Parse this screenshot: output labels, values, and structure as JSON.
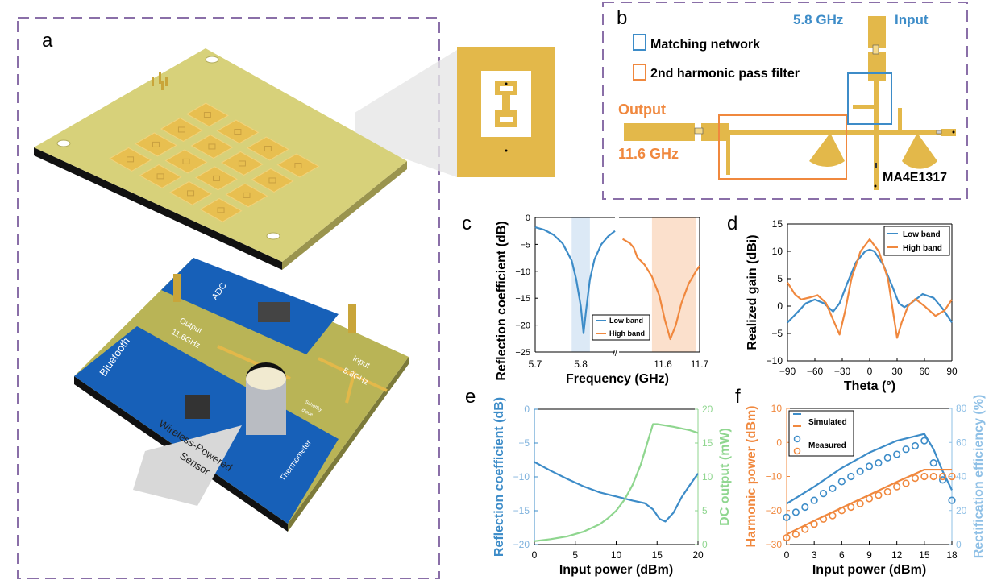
{
  "colors": {
    "blue": "#3d8cc8",
    "orange": "#f0883e",
    "green": "#8fd68f",
    "gold": "#e3b84a",
    "board": "#d7d17a",
    "pcb_blue": "#1760b8",
    "frame": "#8a6fa8",
    "blue_band": "#dce9f6",
    "orange_band": "#fbe0cc"
  },
  "panel_a": {
    "label": "a",
    "board_labels": {
      "adc": "ADC",
      "output": "Output",
      "output_freq": "11.6GHz",
      "input": "Input",
      "input_freq": "5.8GHz",
      "bluetooth": "Bluetooth",
      "sensor_line1": "Wireless-Powered",
      "sensor_line2": "Sensor",
      "thermometer": "Thermometer",
      "schottky_line1": "Schottky",
      "schottky_line2": "diode"
    }
  },
  "panel_b": {
    "label": "b",
    "legend": [
      {
        "label": "Matching network",
        "color": "#3d8cc8"
      },
      {
        "label": "2nd harmonic pass filter",
        "color": "#f0883e"
      }
    ],
    "input_freq": "5.8 GHz",
    "input_label": "Input",
    "output_label": "Output",
    "output_freq": "11.6 GHz",
    "diode": "MA4E1317"
  },
  "chart_data": [
    {
      "panel": "c",
      "type": "line",
      "xlabel": "Frequency (GHz)",
      "ylabel": "Reflection coefficient (dB)",
      "ylim": [
        -25,
        0
      ],
      "broken_x_axis": true,
      "xlim_segments": [
        [
          5.7,
          5.875
        ],
        [
          11.48,
          11.7
        ]
      ],
      "xticks": [
        5.7,
        5.8,
        11.6,
        11.7
      ],
      "yticks": [
        0,
        -5,
        -10,
        -15,
        -20,
        -25
      ],
      "legend_position": "bottom-center",
      "shaded_bands": [
        {
          "x": [
            5.78,
            5.82
          ],
          "color": "#dce9f6"
        },
        {
          "x": [
            11.57,
            11.69
          ],
          "color": "#fbe0cc"
        }
      ],
      "series": [
        {
          "name": "Low band",
          "color": "#3d8cc8",
          "x": [
            5.7,
            5.72,
            5.74,
            5.76,
            5.78,
            5.79,
            5.8,
            5.806,
            5.812,
            5.82,
            5.83,
            5.845,
            5.86,
            5.875
          ],
          "y": [
            -1.8,
            -2.3,
            -3.2,
            -4.8,
            -8,
            -11.5,
            -16.5,
            -21.5,
            -17,
            -11.5,
            -7.8,
            -5,
            -3.5,
            -2.5
          ]
        },
        {
          "name": "High band",
          "color": "#f0883e",
          "x": [
            11.49,
            11.51,
            11.52,
            11.53,
            11.55,
            11.57,
            11.59,
            11.605,
            11.62,
            11.635,
            11.65,
            11.67,
            11.69,
            11.7
          ],
          "y": [
            -4,
            -4.8,
            -5.6,
            -7.4,
            -8.8,
            -11,
            -14.5,
            -19,
            -22.6,
            -20,
            -16,
            -12.3,
            -10,
            -9
          ]
        }
      ]
    },
    {
      "panel": "d",
      "type": "line",
      "xlabel": "Theta (°)",
      "ylabel": "Realized gain (dBi)",
      "xlim": [
        -90,
        90
      ],
      "ylim": [
        -10,
        15
      ],
      "xticks": [
        -90,
        -60,
        -30,
        0,
        30,
        60,
        90
      ],
      "yticks": [
        15,
        10,
        5,
        0,
        -5,
        -10
      ],
      "legend_position": "top-right",
      "series": [
        {
          "name": "Low band",
          "color": "#3d8cc8",
          "x": [
            -90,
            -80,
            -70,
            -60,
            -50,
            -40,
            -33,
            -25,
            -15,
            -5,
            0,
            5,
            15,
            25,
            32,
            38,
            45,
            58,
            70,
            80,
            90
          ],
          "y": [
            -3,
            -1.3,
            0.5,
            1.2,
            0.5,
            -1,
            0.5,
            4,
            8,
            10,
            10.3,
            10,
            7.5,
            3.5,
            0.5,
            -0.2,
            0.5,
            2.2,
            1.5,
            -0.5,
            -3
          ]
        },
        {
          "name": "High band",
          "color": "#f0883e",
          "x": [
            -90,
            -82,
            -75,
            -65,
            -57,
            -48,
            -40,
            -33,
            -27,
            -20,
            -10,
            0,
            10,
            20,
            26,
            30,
            35,
            42,
            50,
            60,
            72,
            82,
            90
          ],
          "y": [
            4.3,
            2.2,
            1.2,
            1.6,
            2,
            0.6,
            -2.5,
            -5.2,
            -1,
            5,
            10,
            12.2,
            10,
            5,
            -1.5,
            -5.8,
            -3,
            0,
            1.3,
            0,
            -1.8,
            -0.8,
            1.2
          ]
        }
      ]
    },
    {
      "panel": "e",
      "type": "line",
      "xlabel": "Input power (dBm)",
      "ylabel": "Reflection coefficient (dB)",
      "y2label": "DC output (mW)",
      "xlim": [
        0,
        20
      ],
      "ylim": [
        -20,
        0
      ],
      "y2lim": [
        0,
        20
      ],
      "xticks": [
        0,
        5,
        10,
        15,
        20
      ],
      "yticks": [
        0,
        -5,
        -10,
        -15,
        -20
      ],
      "y2ticks": [
        20,
        15,
        10,
        5,
        0
      ],
      "series": [
        {
          "axis": "left",
          "color": "#3d8cc8",
          "x": [
            0,
            2,
            4,
            6,
            8,
            10,
            12,
            13.5,
            14.5,
            15.3,
            16,
            17,
            18,
            19,
            20
          ],
          "y": [
            -7.8,
            -9.1,
            -10.3,
            -11.4,
            -12.3,
            -12.9,
            -13.5,
            -13.9,
            -14.8,
            -16.2,
            -16.6,
            -15.3,
            -13,
            -11.2,
            -9.5
          ]
        },
        {
          "axis": "right",
          "color": "#8fd68f",
          "x": [
            0,
            2,
            4,
            6,
            8,
            9,
            10,
            11,
            12,
            13,
            13.8,
            14.5,
            15,
            17,
            19,
            20
          ],
          "y": [
            0.5,
            0.8,
            1.2,
            1.9,
            3,
            3.9,
            5,
            6.6,
            8.8,
            11.8,
            15,
            17.8,
            17.8,
            17.4,
            16.9,
            16.5
          ]
        }
      ]
    },
    {
      "panel": "f",
      "type": "line",
      "xlabel": "Input power (dBm)",
      "ylabel": "Harmonic power (dBm)",
      "y2label": "Rectification efficiency (%)",
      "xlim": [
        0,
        18
      ],
      "ylim": [
        -30,
        10
      ],
      "y2lim": [
        0,
        80
      ],
      "xticks": [
        0,
        3,
        6,
        9,
        12,
        15,
        18
      ],
      "yticks": [
        10,
        0,
        -10,
        -20,
        -30
      ],
      "y2ticks": [
        80,
        60,
        40,
        20,
        0
      ],
      "legend_position": "top-left",
      "legend": [
        {
          "label": "Simulated",
          "style": "line"
        },
        {
          "label": "Measured",
          "style": "circle"
        }
      ],
      "series": [
        {
          "name": "Simulated",
          "axis": "right",
          "color": "#3d8cc8",
          "style": "line",
          "x": [
            0,
            3,
            6,
            9,
            12,
            15,
            16,
            17,
            18
          ],
          "y": [
            24,
            34,
            45,
            54,
            61,
            65,
            56,
            43,
            32
          ]
        },
        {
          "name": "Simulated",
          "axis": "left",
          "color": "#f0883e",
          "style": "line",
          "x": [
            0,
            3,
            6,
            9,
            12,
            15,
            18
          ],
          "y": [
            -27,
            -23,
            -19.2,
            -15.4,
            -11.6,
            -8,
            -8
          ]
        },
        {
          "name": "Measured",
          "axis": "right",
          "color": "#3d8cc8",
          "style": "circle",
          "x": [
            0,
            1,
            2,
            3,
            4,
            5,
            6,
            7,
            8,
            9,
            10,
            11,
            12,
            13,
            14,
            15,
            16,
            17,
            18
          ],
          "y": [
            16,
            19,
            22,
            26,
            30,
            33,
            37,
            40,
            43,
            46,
            48,
            51,
            53,
            56,
            58,
            61,
            48,
            38,
            26
          ]
        },
        {
          "name": "Measured",
          "axis": "left",
          "color": "#f0883e",
          "style": "circle",
          "x": [
            0,
            1,
            2,
            3,
            4,
            5,
            6,
            7,
            8,
            9,
            10,
            11,
            12,
            13,
            14,
            15,
            16,
            17,
            18
          ],
          "y": [
            -28,
            -27,
            -25.5,
            -24,
            -22.5,
            -21.5,
            -20,
            -19,
            -18,
            -16.5,
            -15.5,
            -14.5,
            -13,
            -12,
            -10.5,
            -10,
            -10,
            -10,
            -10
          ]
        }
      ]
    }
  ],
  "panel_labels": {
    "c": "c",
    "d": "d",
    "e": "e",
    "f": "f"
  }
}
